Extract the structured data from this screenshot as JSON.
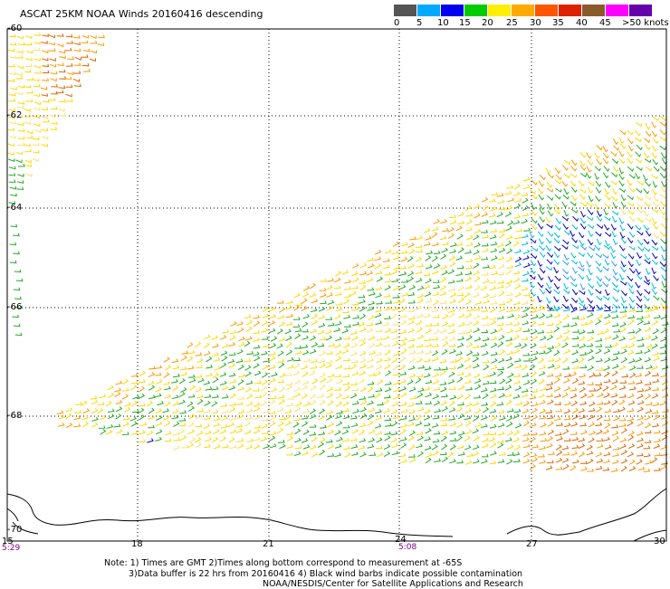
{
  "header": {
    "title": "ASCAT 25KM NOAA Winds 20160416 descending"
  },
  "legend": {
    "labels": [
      "0",
      "5",
      "10",
      "15",
      "20",
      "25",
      "30",
      "35",
      "40",
      "45",
      ">50 knots"
    ],
    "colors": [
      "#555555",
      "#888888",
      "#0099ee",
      "#00ccff",
      "#0000cc",
      "#00aa00",
      "#33cc33",
      "#ffdd00",
      "#ffcc55",
      "#ffaa00",
      "#ff7700",
      "#cc5500",
      "#aa0000",
      "#8b5a2b",
      "#cc00cc",
      "#9900cc",
      "#6600aa"
    ]
  },
  "axes": {
    "y_labels": [
      "-60",
      "-62",
      "-64",
      "-66",
      "-68",
      "-70"
    ],
    "x_labels": [
      "15",
      "18",
      "21",
      "24",
      "27",
      "30"
    ],
    "time_labels": [
      "5:29",
      "5:08"
    ]
  },
  "notes": {
    "line1": "Note: 1) Times are GMT 2)Times along bottom correspond to measurement at -65S",
    "line2": "3)Data buffer is 22 hrs from 20160416 4) Black wind barbs indicate possible contamination",
    "line3": "NOAA/NESDIS/Center for Satellite Applications and Research"
  },
  "map_data": {
    "wind_field_colors": {
      "yellow": "#ffd800",
      "light_yellow": "#ffe066",
      "orange": "#ff9900",
      "dark_orange": "#dd6600",
      "green": "#22aa22",
      "light_green": "#44cc44",
      "blue": "#0000bb",
      "cyan": "#00bbdd",
      "light_blue": "#3399ff",
      "black": "#000000"
    }
  }
}
